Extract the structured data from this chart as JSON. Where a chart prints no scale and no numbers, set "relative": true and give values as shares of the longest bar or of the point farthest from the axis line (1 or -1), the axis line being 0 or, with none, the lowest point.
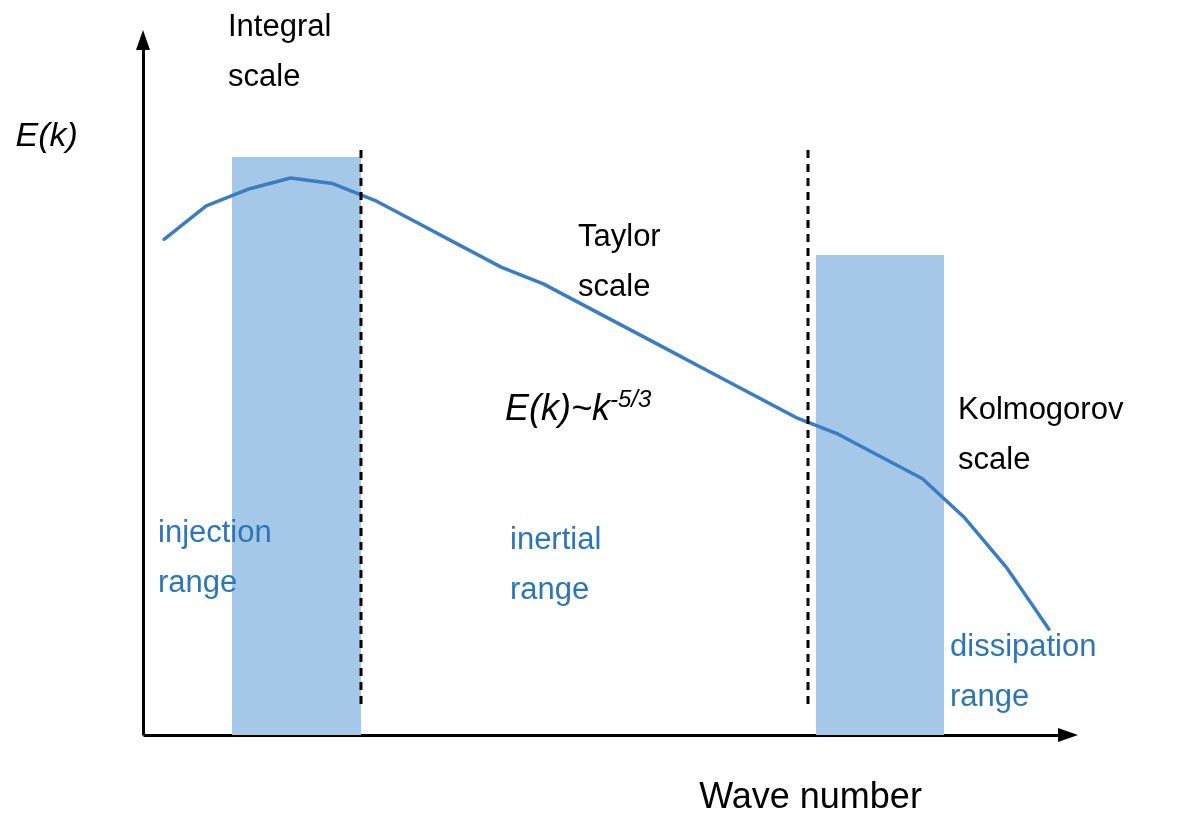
{
  "chart_data": {
    "type": "line",
    "relative": true,
    "xlabel": "Wave number",
    "ylabel": "E(k)",
    "categories": [
      null,
      null,
      null,
      null,
      null,
      null,
      null,
      null,
      null,
      null,
      null,
      null,
      null,
      null,
      null,
      null,
      null,
      null,
      null,
      null,
      null,
      null
    ],
    "series": [
      {
        "color": "#3b7dc0",
        "values": [
          0.89,
          0.95,
          0.98,
          1.0,
          0.99,
          0.96,
          0.92,
          0.88,
          0.84,
          0.81,
          0.77,
          0.73,
          0.69,
          0.65,
          0.61,
          0.57,
          0.54,
          0.5,
          0.46,
          0.39,
          0.3,
          0.19
        ]
      }
    ],
    "annotations": [
      "Integral scale",
      "Taylor scale",
      "E(k)~k$^{-5/3}$",
      "Kolmogorov scale",
      "injection range",
      "inertial range",
      "dissipation range"
    ],
    "grid": false,
    "marker": "none"
  }
}
